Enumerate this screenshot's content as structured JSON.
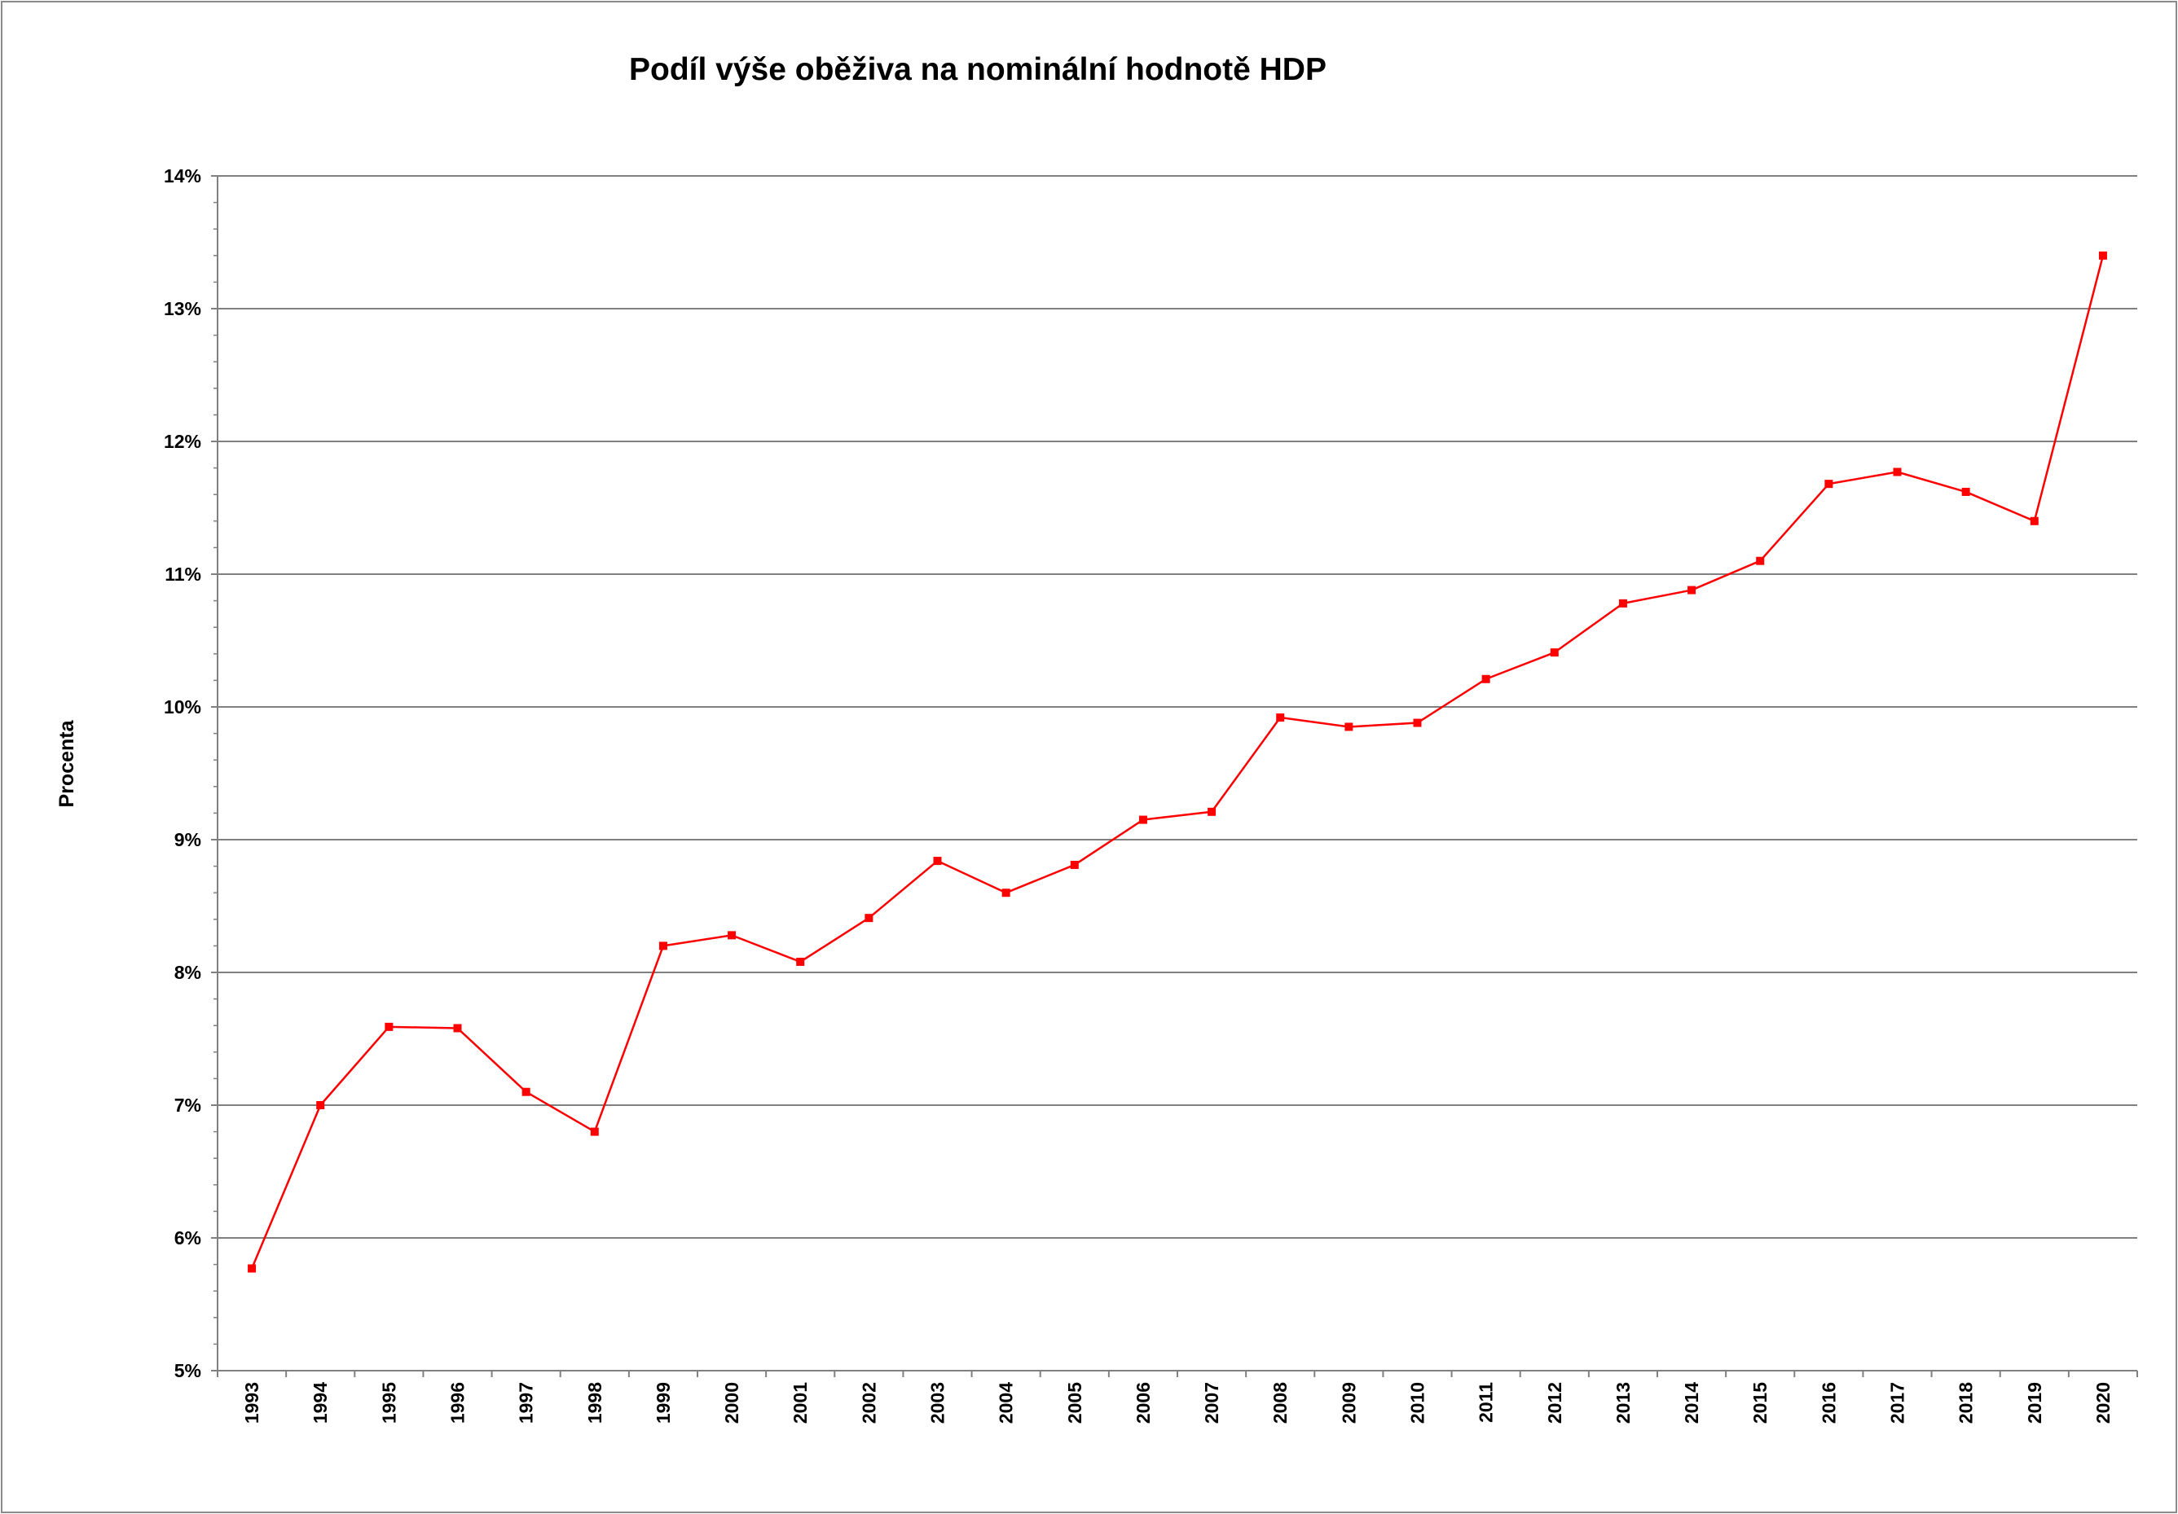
{
  "chart_data": {
    "type": "line",
    "title": "Podíl výše oběživa na nominální hodnotě HDP",
    "ylabel": "Procenta",
    "xlabel": "",
    "ylim": [
      5,
      14
    ],
    "yticks": [
      "5%",
      "6%",
      "7%",
      "8%",
      "9%",
      "10%",
      "11%",
      "12%",
      "13%",
      "14%"
    ],
    "grid": true,
    "legend": "none",
    "categories": [
      "1993",
      "1994",
      "1995",
      "1996",
      "1997",
      "1998",
      "1999",
      "2000",
      "2001",
      "2002",
      "2003",
      "2004",
      "2005",
      "2006",
      "2007",
      "2008",
      "2009",
      "2010",
      "2011",
      "2012",
      "2013",
      "2014",
      "2015",
      "2016",
      "2017",
      "2018",
      "2019",
      "2020"
    ],
    "series": [
      {
        "color": "#ff0000",
        "values": [
          5.77,
          7.0,
          7.59,
          7.58,
          7.1,
          6.8,
          8.2,
          8.28,
          8.08,
          8.41,
          8.84,
          8.6,
          8.81,
          9.15,
          9.21,
          9.92,
          9.85,
          9.88,
          10.21,
          10.41,
          10.78,
          10.88,
          11.1,
          11.68,
          11.77,
          11.62,
          11.4,
          13.4
        ]
      }
    ]
  }
}
